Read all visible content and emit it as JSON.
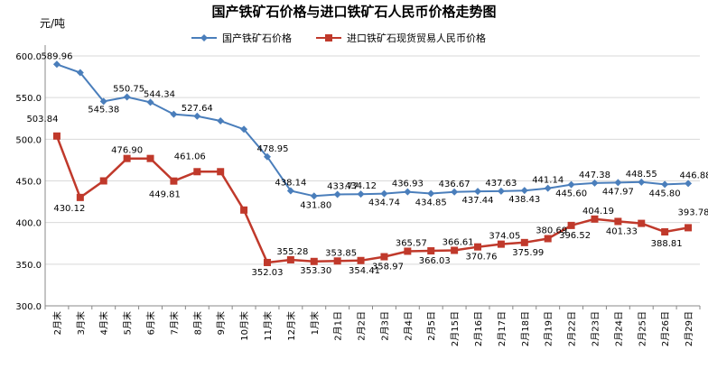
{
  "chart_data": {
    "type": "line",
    "title": "国产铁矿石价格与进口铁矿石人民币价格走势图",
    "ylabel": "元/吨",
    "ylim": [
      300,
      600
    ],
    "yticks": [
      "300.0",
      "350.0",
      "400.0",
      "450.0",
      "500.0",
      "550.0",
      "600.0"
    ],
    "grid": true,
    "legend_position": "top",
    "categories": [
      "2月末",
      "3月末",
      "4月末",
      "5月末",
      "6月末",
      "7月末",
      "8月末",
      "9月末",
      "10月末",
      "11月末",
      "12月末",
      "1月末",
      "2月1日",
      "2月2日",
      "2月3日",
      "2月4日",
      "2月5日",
      "2月15日",
      "2月16日",
      "2月17日",
      "2月18日",
      "2月19日",
      "2月22日",
      "2月23日",
      "2月24日",
      "2月25日",
      "2月26日",
      "2月29日"
    ],
    "series": [
      {
        "name": "国产铁矿石价格",
        "color": "#4a7ebb",
        "marker": "diamond",
        "values": [
          589.96,
          580,
          545.38,
          550.75,
          544.34,
          530,
          527.64,
          522,
          512,
          478.95,
          438.14,
          431.8,
          433.77,
          434.12,
          434.74,
          436.93,
          434.85,
          436.67,
          437.44,
          437.63,
          438.43,
          441.14,
          445.6,
          447.38,
          447.97,
          448.55,
          445.8,
          446.88
        ],
        "labels": [
          "589.96",
          "",
          "545.38",
          "550.75",
          "544.34",
          "",
          "527.64",
          "",
          "",
          "478.95",
          "438.14",
          "431.80",
          "433.77",
          "434.12",
          "434.74",
          "436.93",
          "434.85",
          "436.67",
          "437.44",
          "437.63",
          "438.43",
          "441.14",
          "445.60",
          "447.38",
          "447.97",
          "448.55",
          "445.80",
          "446.88"
        ]
      },
      {
        "name": "进口铁矿石现货贸易人民币价格",
        "color": "#c0392b",
        "marker": "square",
        "values": [
          503.84,
          430.12,
          450,
          476.9,
          476.9,
          449.81,
          461.06,
          461.06,
          415,
          352.03,
          355.28,
          353.3,
          353.85,
          354.41,
          358.97,
          365.57,
          366.03,
          366.61,
          370.76,
          374.05,
          375.99,
          380.69,
          396.52,
          404.19,
          401.33,
          399,
          388.81,
          393.78
        ],
        "labels": [
          "503.84",
          "430.12",
          "",
          "476.90",
          "",
          "449.81",
          "461.06",
          "",
          "",
          "352.03",
          "355.28",
          "353.30",
          "353.85",
          "354.41",
          "358.97",
          "365.57",
          "366.03",
          "366.61",
          "370.76",
          "374.05",
          "375.99",
          "380.69",
          "396.52",
          "404.19",
          "401.33",
          "",
          "388.81",
          "393.78"
        ]
      }
    ]
  }
}
